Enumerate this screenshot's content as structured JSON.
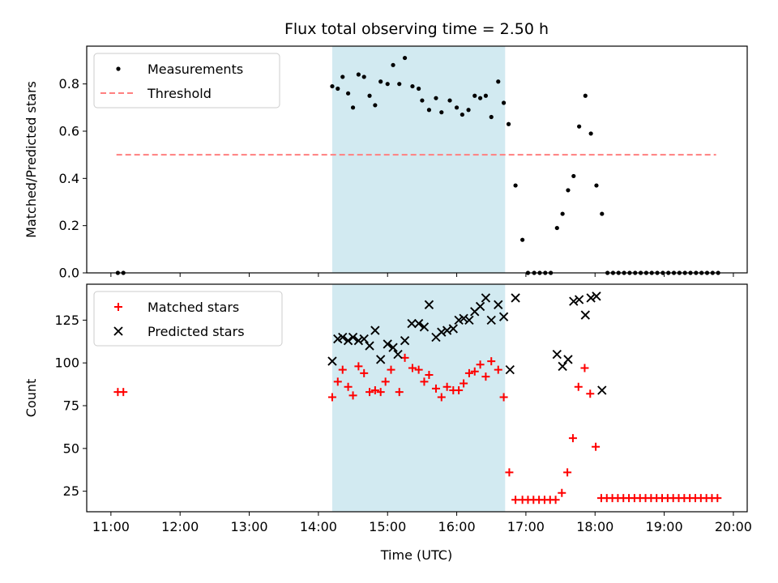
{
  "chart_data": {
    "type": "scatter",
    "title": "Flux total observing time = 2.50 h",
    "xlabel": "Time (UTC)",
    "x_unit": "hours UTC",
    "xlim": [
      10.65,
      20.2
    ],
    "x_ticks": [
      {
        "value": 11,
        "label": "11:00"
      },
      {
        "value": 12,
        "label": "12:00"
      },
      {
        "value": 13,
        "label": "13:00"
      },
      {
        "value": 14,
        "label": "14:00"
      },
      {
        "value": 15,
        "label": "15:00"
      },
      {
        "value": 16,
        "label": "16:00"
      },
      {
        "value": 17,
        "label": "17:00"
      },
      {
        "value": 18,
        "label": "18:00"
      },
      {
        "value": 19,
        "label": "19:00"
      },
      {
        "value": 20,
        "label": "20:00"
      }
    ],
    "shaded_region": {
      "x_start": 14.2,
      "x_end": 16.7,
      "color": "#add8e6"
    },
    "panels": [
      {
        "ylabel": "Matched/Predicted stars",
        "ylim": [
          0,
          0.96
        ],
        "yticks": [
          0,
          0.2,
          0.4,
          0.6,
          0.8
        ],
        "ytick_labels": [
          "0.0",
          "0.2",
          "0.4",
          "0.6",
          "0.8"
        ],
        "show_x_tick_labels": false,
        "legend": {
          "placement": "upper left",
          "entries": [
            "Measurements",
            "Threshold"
          ]
        },
        "series": [
          {
            "name": "Measurements",
            "marker": "dot",
            "color": "#000000",
            "x": [
              11.1,
              11.18,
              14.2,
              14.28,
              14.35,
              14.43,
              14.5,
              14.58,
              14.66,
              14.74,
              14.82,
              14.9,
              15.0,
              15.08,
              15.17,
              15.25,
              15.36,
              15.45,
              15.5,
              15.6,
              15.7,
              15.78,
              15.9,
              16.0,
              16.08,
              16.17,
              16.26,
              16.34,
              16.42,
              16.5,
              16.6,
              16.68,
              16.75,
              16.85,
              16.95,
              17.03,
              17.12,
              17.2,
              17.28,
              17.36,
              17.45,
              17.53,
              17.61,
              17.69,
              17.77,
              17.86,
              17.94,
              18.02,
              18.1,
              18.18,
              18.26,
              18.34,
              18.42,
              18.5,
              18.58,
              18.66,
              18.74,
              18.82,
              18.9,
              18.98,
              19.06,
              19.14,
              19.22,
              19.3,
              19.38,
              19.46,
              19.54,
              19.62,
              19.7,
              19.78
            ],
            "y": [
              0.0,
              0.0,
              0.79,
              0.78,
              0.83,
              0.76,
              0.7,
              0.84,
              0.83,
              0.75,
              0.71,
              0.81,
              0.8,
              0.88,
              0.8,
              0.91,
              0.79,
              0.78,
              0.73,
              0.69,
              0.74,
              0.68,
              0.73,
              0.7,
              0.67,
              0.69,
              0.75,
              0.74,
              0.75,
              0.66,
              0.81,
              0.72,
              0.63,
              0.37,
              0.14,
              0.0,
              0.0,
              0.0,
              0.0,
              0.0,
              0.19,
              0.25,
              0.35,
              0.41,
              0.62,
              0.75,
              0.59,
              0.37,
              0.25,
              0.0,
              0.0,
              0.0,
              0.0,
              0.0,
              0.0,
              0.0,
              0.0,
              0.0,
              0.0,
              0.0,
              0.0,
              0.0,
              0.0,
              0.0,
              0.0,
              0.0,
              0.0,
              0.0,
              0.0,
              0.0
            ]
          },
          {
            "name": "Threshold",
            "marker": "dashed-line",
            "color": "#ff7f7f",
            "x": [
              11.08,
              19.75
            ],
            "y": [
              0.5,
              0.5
            ]
          }
        ]
      },
      {
        "ylabel": "Count",
        "ylim": [
          13,
          146
        ],
        "yticks": [
          25,
          50,
          75,
          100,
          125
        ],
        "ytick_labels": [
          "25",
          "50",
          "75",
          "100",
          "125"
        ],
        "show_x_tick_labels": true,
        "legend": {
          "placement": "upper left",
          "entries": [
            "Matched stars",
            "Predicted stars"
          ]
        },
        "series": [
          {
            "name": "Matched stars",
            "marker": "plus",
            "color": "#ff0000",
            "x": [
              11.1,
              11.18,
              14.2,
              14.28,
              14.35,
              14.43,
              14.5,
              14.58,
              14.66,
              14.74,
              14.82,
              14.9,
              14.97,
              15.05,
              15.17,
              15.25,
              15.36,
              15.45,
              15.53,
              15.6,
              15.7,
              15.78,
              15.86,
              15.95,
              16.03,
              16.1,
              16.18,
              16.26,
              16.34,
              16.42,
              16.5,
              16.6,
              16.68,
              16.76,
              16.85,
              16.95,
              17.03,
              17.11,
              17.19,
              17.27,
              17.35,
              17.43,
              17.52,
              17.6,
              17.68,
              17.76,
              17.85,
              17.93,
              18.01,
              18.09,
              18.17,
              18.25,
              18.33,
              18.41,
              18.49,
              18.57,
              18.65,
              18.73,
              18.81,
              18.89,
              18.97,
              19.05,
              19.13,
              19.21,
              19.29,
              19.37,
              19.45,
              19.53,
              19.61,
              19.69,
              19.77
            ],
            "y": [
              83,
              83,
              80,
              89,
              96,
              86,
              81,
              98,
              94,
              83,
              84,
              83,
              89,
              96,
              83,
              103,
              97,
              96,
              89,
              93,
              85,
              80,
              86,
              84,
              84,
              88,
              94,
              95,
              99,
              92,
              101,
              96,
              80,
              36,
              20,
              20,
              20,
              20,
              20,
              20,
              20,
              20,
              24,
              36,
              56,
              86,
              97,
              82,
              51,
              21,
              21,
              21,
              21,
              21,
              21,
              21,
              21,
              21,
              21,
              21,
              21,
              21,
              21,
              21,
              21,
              21,
              21,
              21,
              21,
              21,
              21
            ]
          },
          {
            "name": "Predicted stars",
            "marker": "x",
            "color": "#000000",
            "x": [
              14.2,
              14.28,
              14.35,
              14.43,
              14.5,
              14.58,
              14.66,
              14.74,
              14.82,
              14.9,
              15.0,
              15.08,
              15.15,
              15.25,
              15.35,
              15.45,
              15.53,
              15.6,
              15.7,
              15.78,
              15.86,
              15.95,
              16.03,
              16.1,
              16.18,
              16.26,
              16.34,
              16.42,
              16.5,
              16.6,
              16.68,
              16.77,
              16.85,
              17.45,
              17.53,
              17.61,
              17.69,
              17.77,
              17.86,
              17.94,
              18.02,
              18.1
            ],
            "y": [
              101,
              114,
              115,
              113,
              115,
              113,
              114,
              110,
              119,
              102,
              111,
              109,
              105,
              113,
              123,
              123,
              121,
              134,
              115,
              118,
              119,
              120,
              125,
              126,
              125,
              130,
              133,
              138,
              125,
              134,
              127,
              96,
              138,
              105,
              98,
              102,
              136,
              137,
              128,
              138,
              139,
              84
            ]
          }
        ]
      }
    ]
  }
}
